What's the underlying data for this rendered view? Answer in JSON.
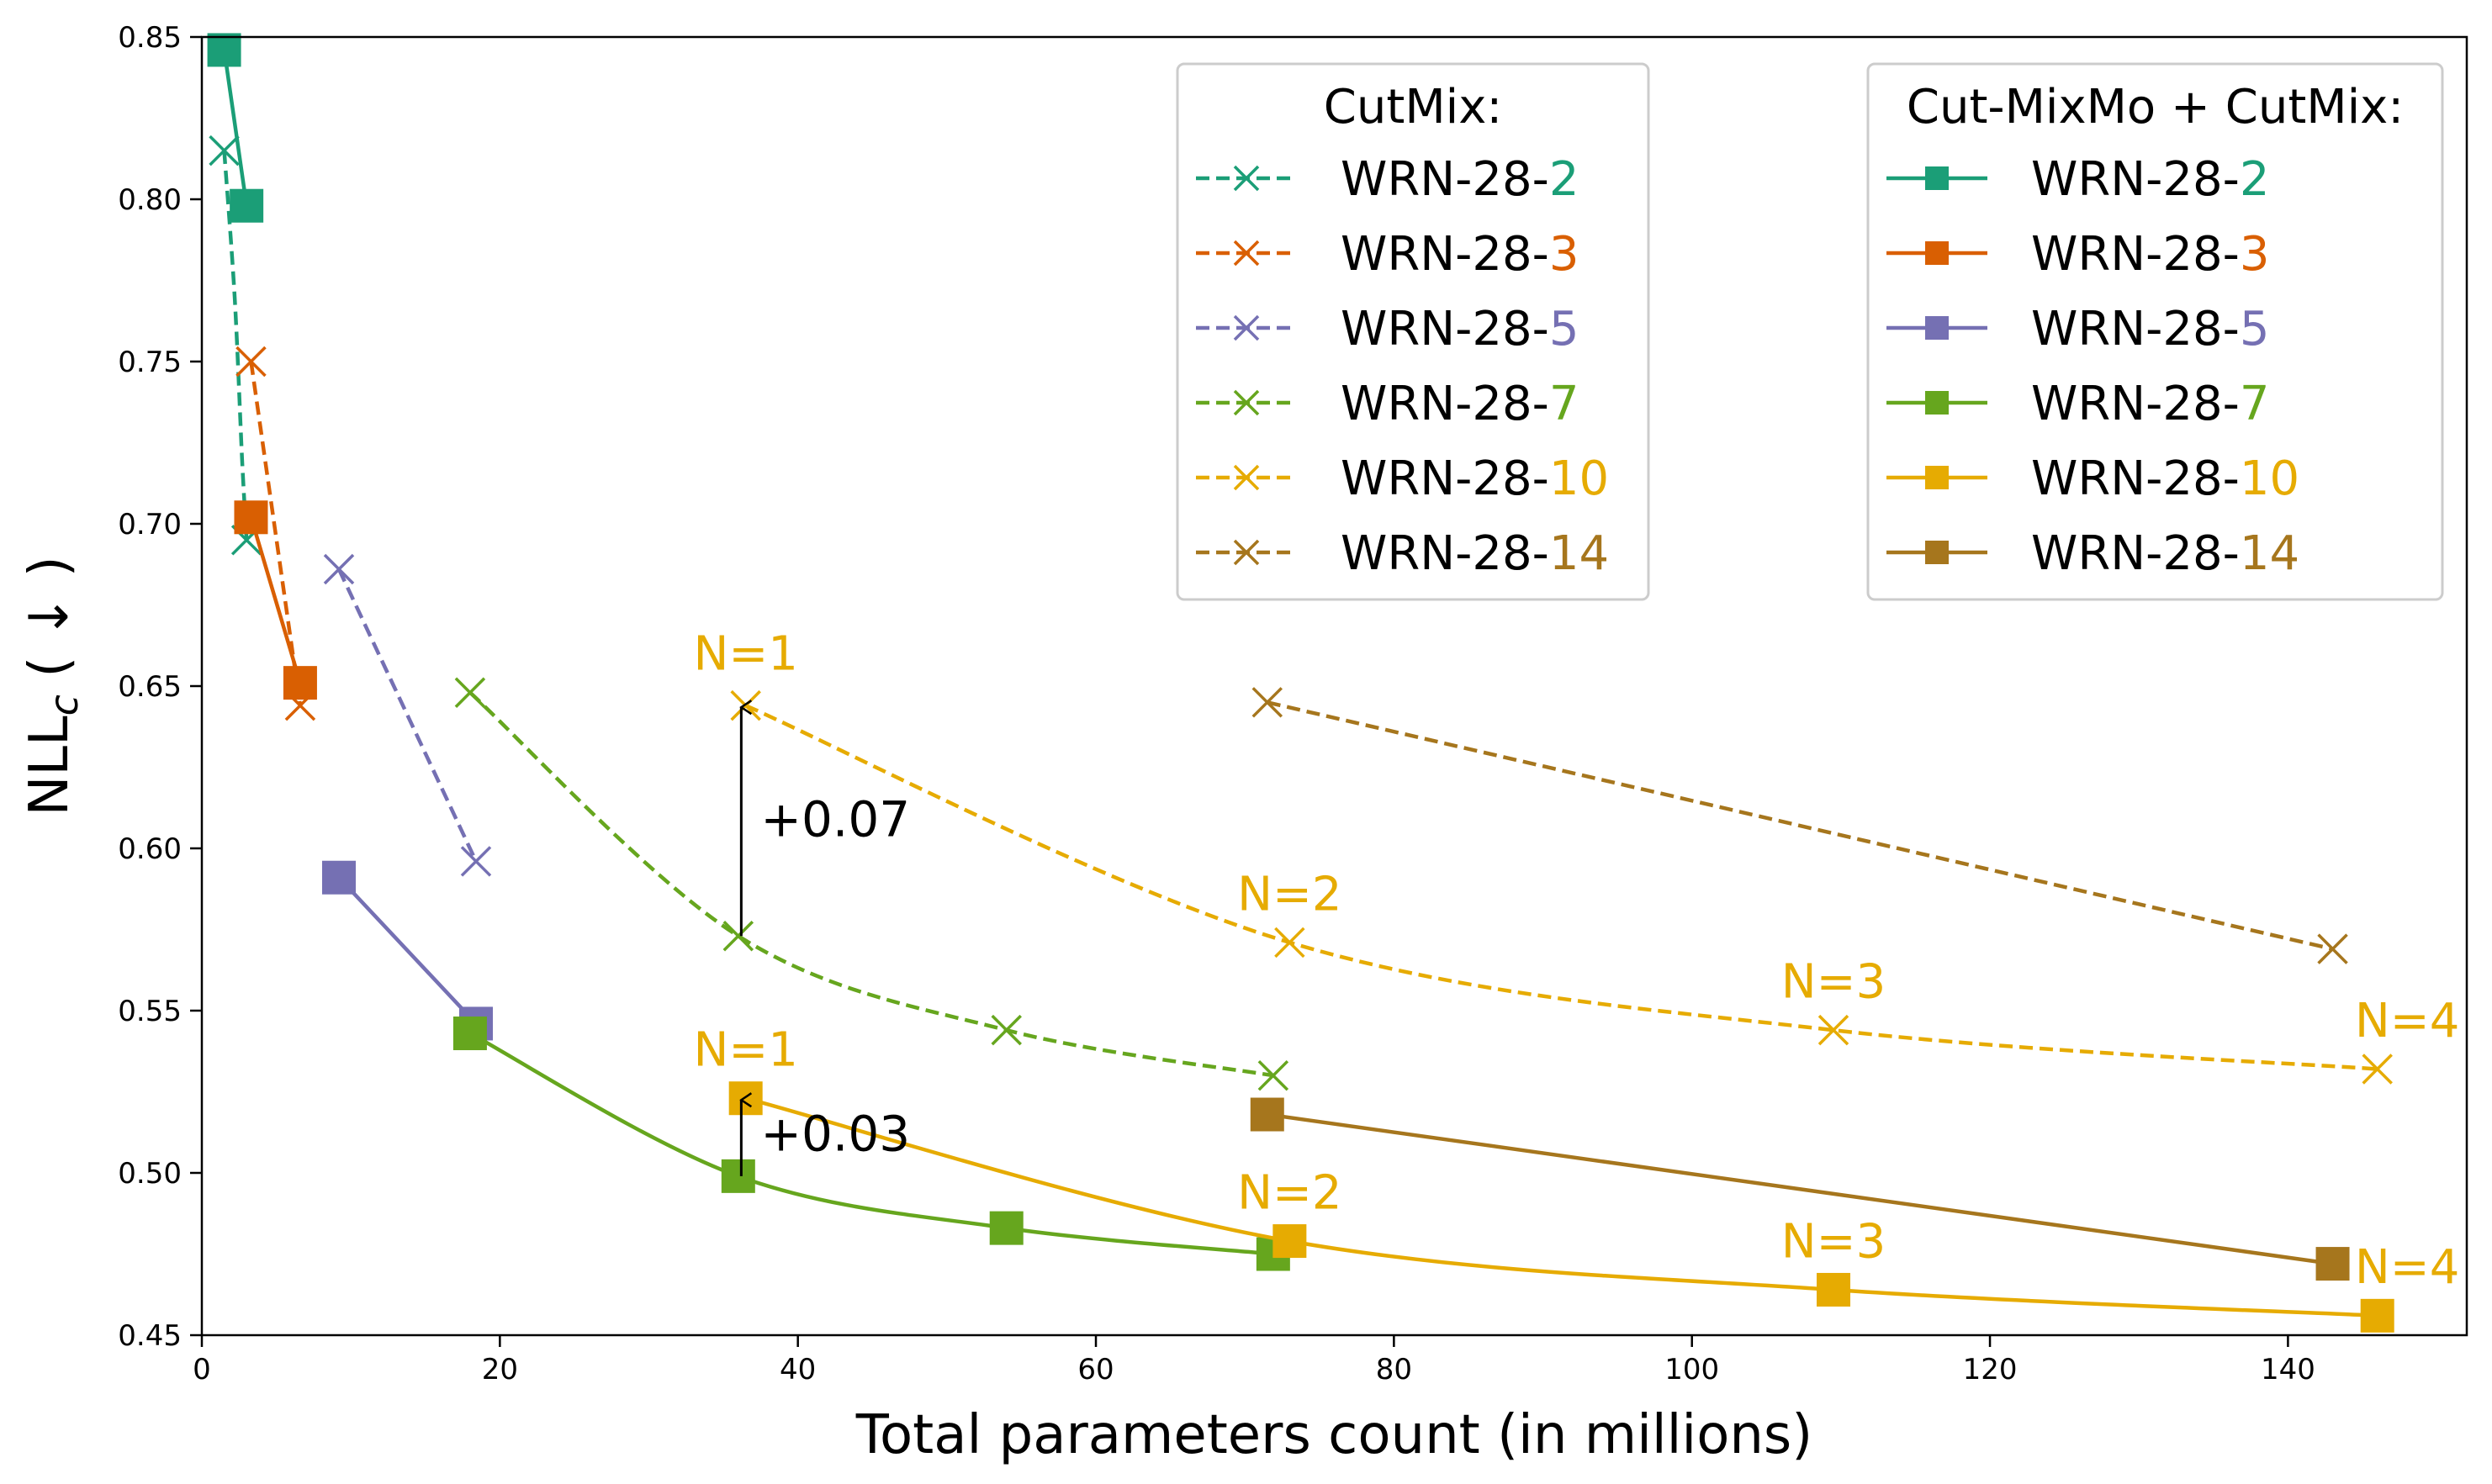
{
  "chart_data": {
    "type": "line",
    "title": "",
    "xlabel": "Total parameters count (in millions)",
    "ylabel_main": "NLL",
    "ylabel_sub": "c",
    "ylabel_arrow": " ( ↓ )",
    "xlim": [
      0,
      152
    ],
    "ylim": [
      0.45,
      0.85
    ],
    "xticks": [
      0,
      20,
      40,
      60,
      80,
      100,
      120,
      140
    ],
    "yticks": [
      0.45,
      0.5,
      0.55,
      0.6,
      0.65,
      0.7,
      0.75,
      0.8,
      0.85
    ],
    "xtick_labels": [
      "0",
      "20",
      "40",
      "60",
      "80",
      "100",
      "120",
      "140"
    ],
    "ytick_labels": [
      "0.45",
      "0.50",
      "0.55",
      "0.60",
      "0.65",
      "0.70",
      "0.75",
      "0.80",
      "0.85"
    ],
    "grid": false,
    "legend_cutmix": {
      "title": "CutMix:",
      "entries": [
        {
          "prefix": "WRN-28-",
          "suffix": "2",
          "color": "#1b9e77",
          "style": "dashed",
          "marker": "x"
        },
        {
          "prefix": "WRN-28-",
          "suffix": "3",
          "color": "#d95f02",
          "style": "dashed",
          "marker": "x"
        },
        {
          "prefix": "WRN-28-",
          "suffix": "5",
          "color": "#7570b3",
          "style": "dashed",
          "marker": "x"
        },
        {
          "prefix": "WRN-28-",
          "suffix": "7",
          "color": "#66a61e",
          "style": "dashed",
          "marker": "x"
        },
        {
          "prefix": "WRN-28-",
          "suffix": "10",
          "color": "#e6ab02",
          "style": "dashed",
          "marker": "x"
        },
        {
          "prefix": "WRN-28-",
          "suffix": "14",
          "color": "#a6761d",
          "style": "dashed",
          "marker": "x"
        }
      ]
    },
    "legend_mixmo": {
      "title": "Cut-MixMo + CutMix:",
      "entries": [
        {
          "prefix": "WRN-28-",
          "suffix": "2",
          "color": "#1b9e77",
          "style": "solid",
          "marker": "square"
        },
        {
          "prefix": "WRN-28-",
          "suffix": "3",
          "color": "#d95f02",
          "style": "solid",
          "marker": "square"
        },
        {
          "prefix": "WRN-28-",
          "suffix": "5",
          "color": "#7570b3",
          "style": "solid",
          "marker": "square"
        },
        {
          "prefix": "WRN-28-",
          "suffix": "7",
          "color": "#66a61e",
          "style": "solid",
          "marker": "square"
        },
        {
          "prefix": "WRN-28-",
          "suffix": "10",
          "color": "#e6ab02",
          "style": "solid",
          "marker": "square"
        },
        {
          "prefix": "WRN-28-",
          "suffix": "14",
          "color": "#a6761d",
          "style": "solid",
          "marker": "square"
        }
      ]
    },
    "series": [
      {
        "name": "CutMix WRN-28-2",
        "color": "#1b9e77",
        "style": "dashed",
        "marker": "x",
        "x": [
          1.5,
          3.0
        ],
        "y": [
          0.815,
          0.695
        ],
        "curve": [
          [
            1.5,
            0.815
          ],
          [
            2.2,
            0.77
          ],
          [
            2.7,
            0.72
          ],
          [
            3.0,
            0.695
          ]
        ]
      },
      {
        "name": "CutMix WRN-28-3",
        "color": "#d95f02",
        "style": "dashed",
        "marker": "x",
        "x": [
          3.3,
          6.6
        ],
        "y": [
          0.75,
          0.644
        ]
      },
      {
        "name": "CutMix WRN-28-5",
        "color": "#7570b3",
        "style": "dashed",
        "marker": "x",
        "x": [
          9.2,
          18.4
        ],
        "y": [
          0.686,
          0.596
        ]
      },
      {
        "name": "CutMix WRN-28-7",
        "color": "#66a61e",
        "style": "dashed",
        "marker": "x",
        "x": [
          18.0,
          36.0,
          54.0,
          71.9
        ],
        "y": [
          0.648,
          0.573,
          0.544,
          0.53
        ]
      },
      {
        "name": "CutMix WRN-28-10",
        "color": "#e6ab02",
        "style": "dashed",
        "marker": "x",
        "x": [
          36.5,
          73.0,
          109.5,
          146.0
        ],
        "y": [
          0.644,
          0.571,
          0.544,
          0.532
        ]
      },
      {
        "name": "CutMix WRN-28-14",
        "color": "#a6761d",
        "style": "dashed",
        "marker": "x",
        "x": [
          71.5,
          143.0
        ],
        "y": [
          0.645,
          0.569
        ]
      },
      {
        "name": "Cut-MixMo + CutMix WRN-28-2",
        "color": "#1b9e77",
        "style": "solid",
        "marker": "square",
        "x": [
          1.5,
          3.0
        ],
        "y": [
          0.846,
          0.798
        ]
      },
      {
        "name": "Cut-MixMo + CutMix WRN-28-3",
        "color": "#d95f02",
        "style": "solid",
        "marker": "square",
        "x": [
          3.3,
          6.6
        ],
        "y": [
          0.702,
          0.651
        ]
      },
      {
        "name": "Cut-MixMo + CutMix WRN-28-5",
        "color": "#7570b3",
        "style": "solid",
        "marker": "square",
        "x": [
          9.2,
          18.4
        ],
        "y": [
          0.591,
          0.546
        ]
      },
      {
        "name": "Cut-MixMo + CutMix WRN-28-7",
        "color": "#66a61e",
        "style": "solid",
        "marker": "square",
        "x": [
          18.0,
          36.0,
          54.0,
          71.9
        ],
        "y": [
          0.543,
          0.499,
          0.483,
          0.475
        ]
      },
      {
        "name": "Cut-MixMo + CutMix WRN-28-10",
        "color": "#e6ab02",
        "style": "solid",
        "marker": "square",
        "x": [
          36.5,
          73.0,
          109.5,
          146.0
        ],
        "y": [
          0.523,
          0.479,
          0.464,
          0.456
        ]
      },
      {
        "name": "Cut-MixMo + CutMix WRN-28-14",
        "color": "#a6761d",
        "style": "solid",
        "marker": "square",
        "x": [
          71.5,
          143.0
        ],
        "y": [
          0.518,
          0.472
        ]
      }
    ],
    "annotations": [
      {
        "text": "N=1",
        "x": 36.5,
        "y": 0.655,
        "color": "#e6ab02"
      },
      {
        "text": "N=2",
        "x": 73.0,
        "y": 0.581,
        "color": "#e6ab02"
      },
      {
        "text": "N=3",
        "x": 109.5,
        "y": 0.554,
        "color": "#e6ab02"
      },
      {
        "text": "N=4",
        "x": 148.0,
        "y": 0.542,
        "color": "#e6ab02"
      },
      {
        "text": "N=1",
        "x": 36.5,
        "y": 0.533,
        "color": "#e6ab02"
      },
      {
        "text": "N=2",
        "x": 73.0,
        "y": 0.489,
        "color": "#e6ab02"
      },
      {
        "text": "N=3",
        "x": 109.5,
        "y": 0.474,
        "color": "#e6ab02"
      },
      {
        "text": "N=4",
        "x": 148.0,
        "y": 0.466,
        "color": "#e6ab02"
      }
    ],
    "arrows": [
      {
        "label": "+0.07",
        "x": 36.2,
        "y_from": 0.573,
        "y_to": 0.644,
        "label_x": 37.5,
        "label_y": 0.609
      },
      {
        "label": "+0.03",
        "x": 36.2,
        "y_from": 0.499,
        "y_to": 0.523,
        "label_x": 37.5,
        "label_y": 0.512
      }
    ]
  }
}
